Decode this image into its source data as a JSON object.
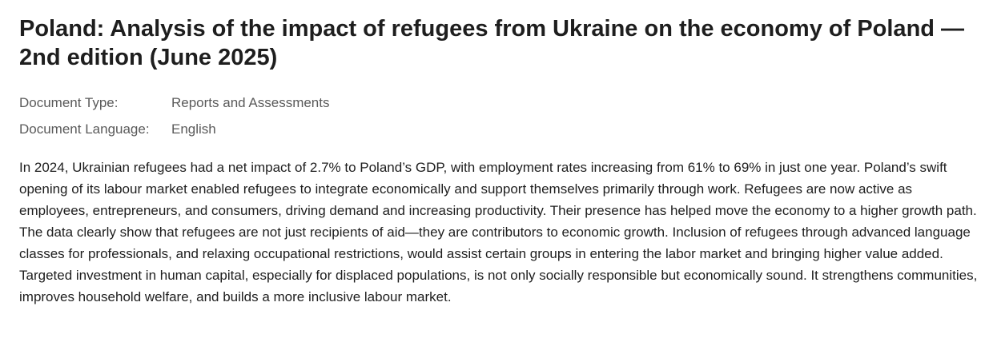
{
  "document": {
    "title": "Poland: Analysis of the impact of refugees from Ukraine on the economy of Poland — 2nd edition (June 2025)",
    "meta": [
      {
        "label": "Document Type:",
        "value": "Reports and Assessments"
      },
      {
        "label": "Document Language:",
        "value": "English"
      }
    ],
    "abstract": "In 2024, Ukrainian refugees had a net impact of 2.7% to Poland’s GDP, with employment rates increasing from 61% to 69% in just one year. Poland’s swift opening of its labour market enabled refugees to integrate economically and support themselves primarily through work. Refugees are now active as employees, entrepreneurs, and consumers, driving demand and increasing productivity. Their presence has helped move the economy to a higher growth path. The data clearly show that refugees are not just recipients of aid—they are contributors to economic growth. Inclusion of refugees through advanced language classes for professionals, and relaxing occupational restrictions, would assist certain groups in entering the labor market and bringing higher value added. Targeted investment in human capital, especially for displaced populations, is not only socially responsible but economically sound. It strengthens communities, improves household welfare, and builds a more inclusive labour market."
  },
  "colors": {
    "title_text": "#1e1e1e",
    "meta_text": "#5a5a5a",
    "body_text": "#1e1e1e",
    "background": "#ffffff"
  }
}
